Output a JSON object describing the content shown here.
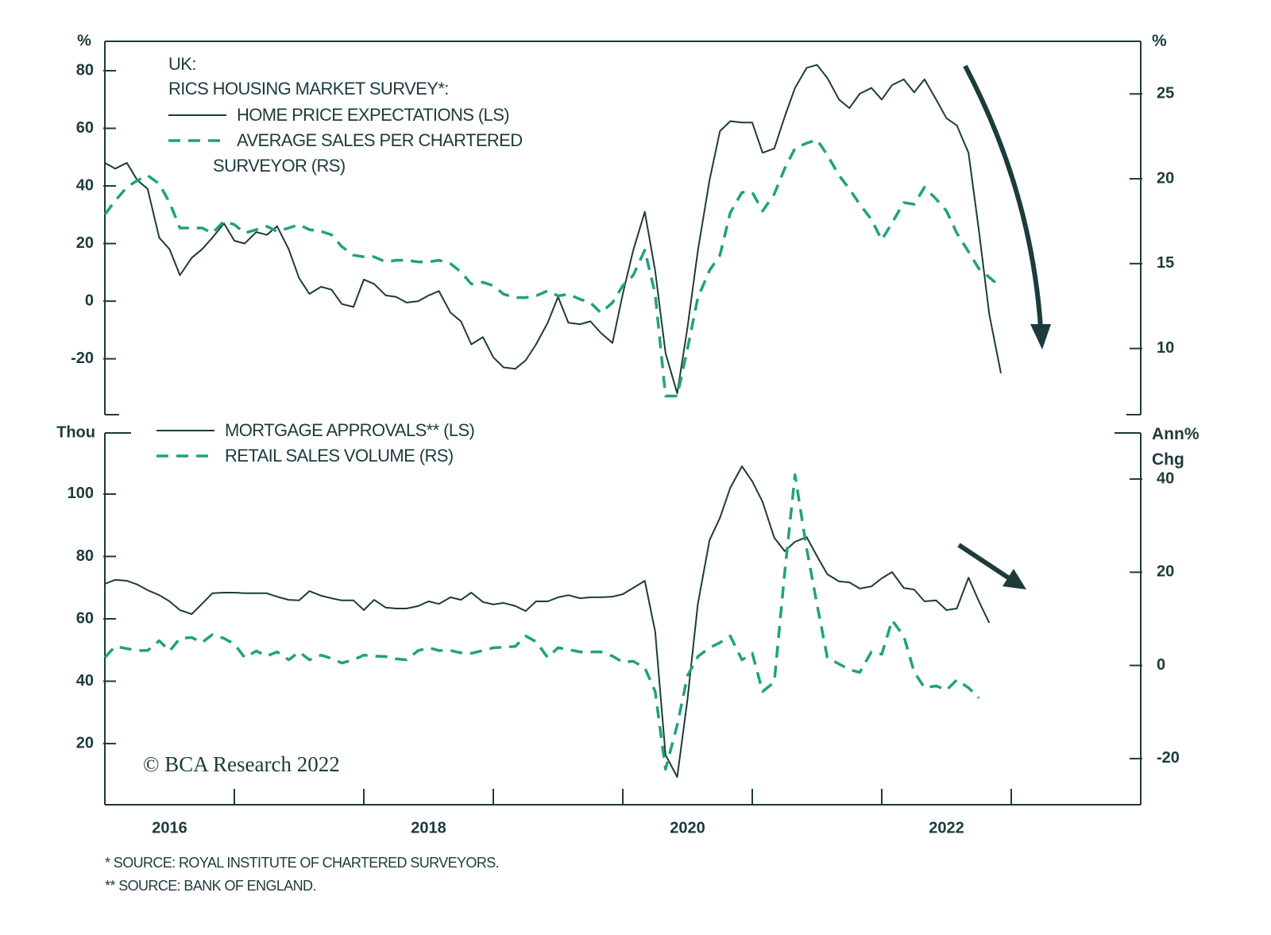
{
  "chart_data": [
    {
      "type": "line",
      "legend_title": [
        "UK:",
        "RICS HOUSING MARKET SURVEY*:"
      ],
      "y_unit": "%",
      "y2_unit": "%",
      "xlim": [
        2016,
        2024
      ],
      "ylim": [
        -39.4,
        90.2
      ],
      "yticks": [
        -20,
        0,
        20,
        40,
        60,
        80
      ],
      "y2lim": [
        6.1,
        28.1
      ],
      "y2ticks": [
        10,
        15,
        20,
        25
      ],
      "x": [
        2016,
        2016.08,
        2016.17,
        2016.25,
        2016.33,
        2016.42,
        2016.5,
        2016.58,
        2016.67,
        2016.75,
        2016.83,
        2016.92,
        2017,
        2017.08,
        2017.17,
        2017.25,
        2017.33,
        2017.42,
        2017.5,
        2017.58,
        2017.67,
        2017.75,
        2017.83,
        2017.92,
        2018,
        2018.08,
        2018.17,
        2018.25,
        2018.33,
        2018.42,
        2018.5,
        2018.58,
        2018.67,
        2018.75,
        2018.83,
        2018.92,
        2019,
        2019.08,
        2019.17,
        2019.25,
        2019.33,
        2019.42,
        2019.5,
        2019.58,
        2019.67,
        2019.75,
        2019.83,
        2019.92,
        2020,
        2020.08,
        2020.17,
        2020.25,
        2020.33,
        2020.42,
        2020.5,
        2020.58,
        2020.67,
        2020.75,
        2020.83,
        2020.92,
        2021,
        2021.08,
        2021.17,
        2021.25,
        2021.33,
        2021.42,
        2021.5,
        2021.58,
        2021.67,
        2021.75,
        2021.83,
        2021.92,
        2022,
        2022.08,
        2022.17,
        2022.25,
        2022.33,
        2022.42,
        2022.5,
        2022.58,
        2022.67,
        2022.75,
        2022.83,
        2022.92
      ],
      "series": [
        {
          "name": "HOME PRICE EXPECTATIONS (LS)",
          "color": "#1d3b3b",
          "axis": "y",
          "dash": false,
          "values": [
            48,
            46,
            48,
            42,
            39,
            22,
            18,
            9,
            15,
            18,
            22,
            27,
            21,
            20,
            24,
            23,
            26,
            18,
            8,
            2.5,
            5,
            4,
            -1,
            -2,
            7.5,
            6,
            2,
            1.5,
            -0.5,
            0,
            2,
            3.5,
            -4,
            -7,
            -15,
            -12.5,
            -19.5,
            -23,
            -23.5,
            -20.5,
            -15,
            -7.5,
            1.5,
            -7.5,
            -8,
            -7,
            -11,
            -14.5,
            2.5,
            17.5,
            31,
            10.5,
            -18,
            -32,
            -9,
            17.5,
            42,
            59,
            62.5,
            62,
            62,
            51.5,
            53,
            64,
            74,
            81,
            82,
            77.5,
            70,
            67,
            72,
            74,
            70,
            75,
            77,
            72.5,
            77,
            70,
            63.5,
            61,
            51.5,
            24.5,
            -4.5,
            -25
          ]
        },
        {
          "name": "AVERAGE SALES PER CHARTERED SURVEYOR (RS)",
          "color": "#1fa27c",
          "axis": "y2",
          "dash": true,
          "values": [
            17.9,
            18.7,
            19.5,
            19.9,
            20.2,
            19.7,
            18.6,
            17.1,
            17.1,
            17.1,
            16.8,
            17.5,
            17.3,
            16.8,
            17.0,
            17.2,
            16.9,
            17.1,
            17.3,
            17.0,
            16.9,
            16.7,
            16.0,
            15.5,
            15.4,
            15.4,
            15.1,
            15.2,
            15.2,
            15.1,
            15.1,
            15.2,
            15.0,
            14.5,
            13.8,
            13.9,
            13.7,
            13.2,
            13.0,
            13.0,
            13.1,
            13.4,
            13.1,
            13.2,
            12.9,
            12.7,
            12.1,
            12.7,
            13.7,
            14.3,
            15.8,
            13.2,
            7.2,
            7.2,
            10.0,
            13.0,
            14.6,
            15.5,
            18.0,
            19.2,
            19.2,
            18.1,
            19.1,
            20.6,
            21.8,
            22.1,
            22.3,
            21.4,
            20.2,
            19.4,
            18.5,
            17.6,
            16.4,
            17.4,
            18.6,
            18.5,
            19.5,
            18.8,
            18.1,
            16.8,
            15.7,
            14.7,
            14.2,
            13.6
          ]
        }
      ]
    },
    {
      "type": "line",
      "y_unit": "Thou",
      "y2_unit": "Ann% Chg",
      "annotation": "© BCA Research 2022",
      "xlim": [
        2016,
        2024
      ],
      "xticks": [
        2017,
        2018,
        2019,
        2020,
        2021,
        2022,
        2023
      ],
      "xtick_labels": [
        {
          "value": 2016.5,
          "label": "2016"
        },
        {
          "value": 2018.5,
          "label": "2018"
        },
        {
          "value": 2020.5,
          "label": "2020"
        },
        {
          "value": 2022.5,
          "label": "2022"
        }
      ],
      "ylim": [
        0.4,
        119.6
      ],
      "yticks": [
        20,
        40,
        60,
        80,
        100
      ],
      "y2lim": [
        -29.9,
        49.9
      ],
      "y2ticks": [
        -20,
        0,
        20,
        40
      ],
      "x": [
        2016,
        2016.08,
        2016.17,
        2016.25,
        2016.33,
        2016.42,
        2016.5,
        2016.58,
        2016.67,
        2016.75,
        2016.83,
        2016.92,
        2017,
        2017.08,
        2017.17,
        2017.25,
        2017.33,
        2017.42,
        2017.5,
        2017.58,
        2017.67,
        2017.75,
        2017.83,
        2017.92,
        2018,
        2018.08,
        2018.17,
        2018.25,
        2018.33,
        2018.42,
        2018.5,
        2018.58,
        2018.67,
        2018.75,
        2018.83,
        2018.92,
        2019,
        2019.08,
        2019.17,
        2019.25,
        2019.33,
        2019.42,
        2019.5,
        2019.58,
        2019.67,
        2019.75,
        2019.83,
        2019.92,
        2020,
        2020.08,
        2020.17,
        2020.25,
        2020.33,
        2020.42,
        2020.5,
        2020.58,
        2020.67,
        2020.75,
        2020.83,
        2020.92,
        2021,
        2021.08,
        2021.17,
        2021.25,
        2021.33,
        2021.42,
        2021.5,
        2021.58,
        2021.67,
        2021.75,
        2021.83,
        2021.92,
        2022,
        2022.08,
        2022.17,
        2022.25,
        2022.33,
        2022.42,
        2022.5,
        2022.58,
        2022.67,
        2022.75,
        2022.83,
        2022.92
      ],
      "series": [
        {
          "name": "MORTGAGE APPROVALS** (LS)",
          "color": "#1d3b3b",
          "axis": "y",
          "dash": false,
          "values": [
            71.2,
            72.5,
            72.2,
            71,
            69.2,
            67.6,
            65.6,
            62.8,
            61.5,
            64.8,
            68.2,
            68.4,
            68.4,
            68.2,
            68.2,
            68.2,
            67.1,
            66.1,
            65.9,
            68.9,
            67.4,
            66.6,
            65.9,
            65.9,
            62.8,
            66.1,
            63.6,
            63.3,
            63.3,
            64.1,
            65.6,
            64.8,
            66.9,
            66.1,
            68.4,
            65.4,
            64.6,
            65.1,
            64.1,
            62.5,
            65.6,
            65.6,
            66.9,
            67.6,
            66.6,
            66.9,
            66.9,
            67.1,
            67.9,
            69.9,
            72.2,
            55.9,
            16.4,
            9.3,
            34.3,
            64.8,
            85.2,
            92.4,
            102,
            108.9,
            104.1,
            97.5,
            86,
            81.7,
            84.7,
            86.2,
            80.1,
            74.3,
            72,
            71.7,
            69.7,
            70.4,
            73,
            75,
            69.9,
            69.4,
            65.6,
            65.9,
            62.8,
            63.3,
            73.2,
            65.6,
            58.7,
            null
          ]
        },
        {
          "name": "RETAIL SALES VOLUME (RS)",
          "color": "#1fa27c",
          "axis": "y2",
          "dash": true,
          "values": [
            1.7,
            4.1,
            3.6,
            3.2,
            3.2,
            5.3,
            3.1,
            5.8,
            6.0,
            4.9,
            6.6,
            5.8,
            4.6,
            1.7,
            3.1,
            2.0,
            2.9,
            1.2,
            2.9,
            1.2,
            2.2,
            1.5,
            0.5,
            1.2,
            2.2,
            2.0,
            1.9,
            1.4,
            1.2,
            3.2,
            3.8,
            3.2,
            3.2,
            2.7,
            2.6,
            3.2,
            3.8,
            3.9,
            4.1,
            6.3,
            5.1,
            1.7,
            3.8,
            3.4,
            2.9,
            2.9,
            2.9,
            2.0,
            0.7,
            0.9,
            -0.5,
            -5.6,
            -22.3,
            -12.8,
            -2.2,
            1.9,
            3.8,
            4.9,
            6.3,
            1.2,
            2.6,
            -5.6,
            -3.6,
            19.9,
            40.9,
            25,
            13.1,
            1.7,
            0.3,
            -0.9,
            -1.5,
            2.9,
            2.4,
            9.7,
            6.3,
            -1.4,
            -4.8,
            -4.4,
            -5.3,
            -3.1,
            -4.8,
            -7.0,
            null,
            null
          ]
        }
      ]
    }
  ],
  "footnotes": [
    "* SOURCE: ROYAL INSTITUTE OF CHARTERED SURVEYORS.",
    "** SOURCE: BANK OF ENGLAND."
  ]
}
